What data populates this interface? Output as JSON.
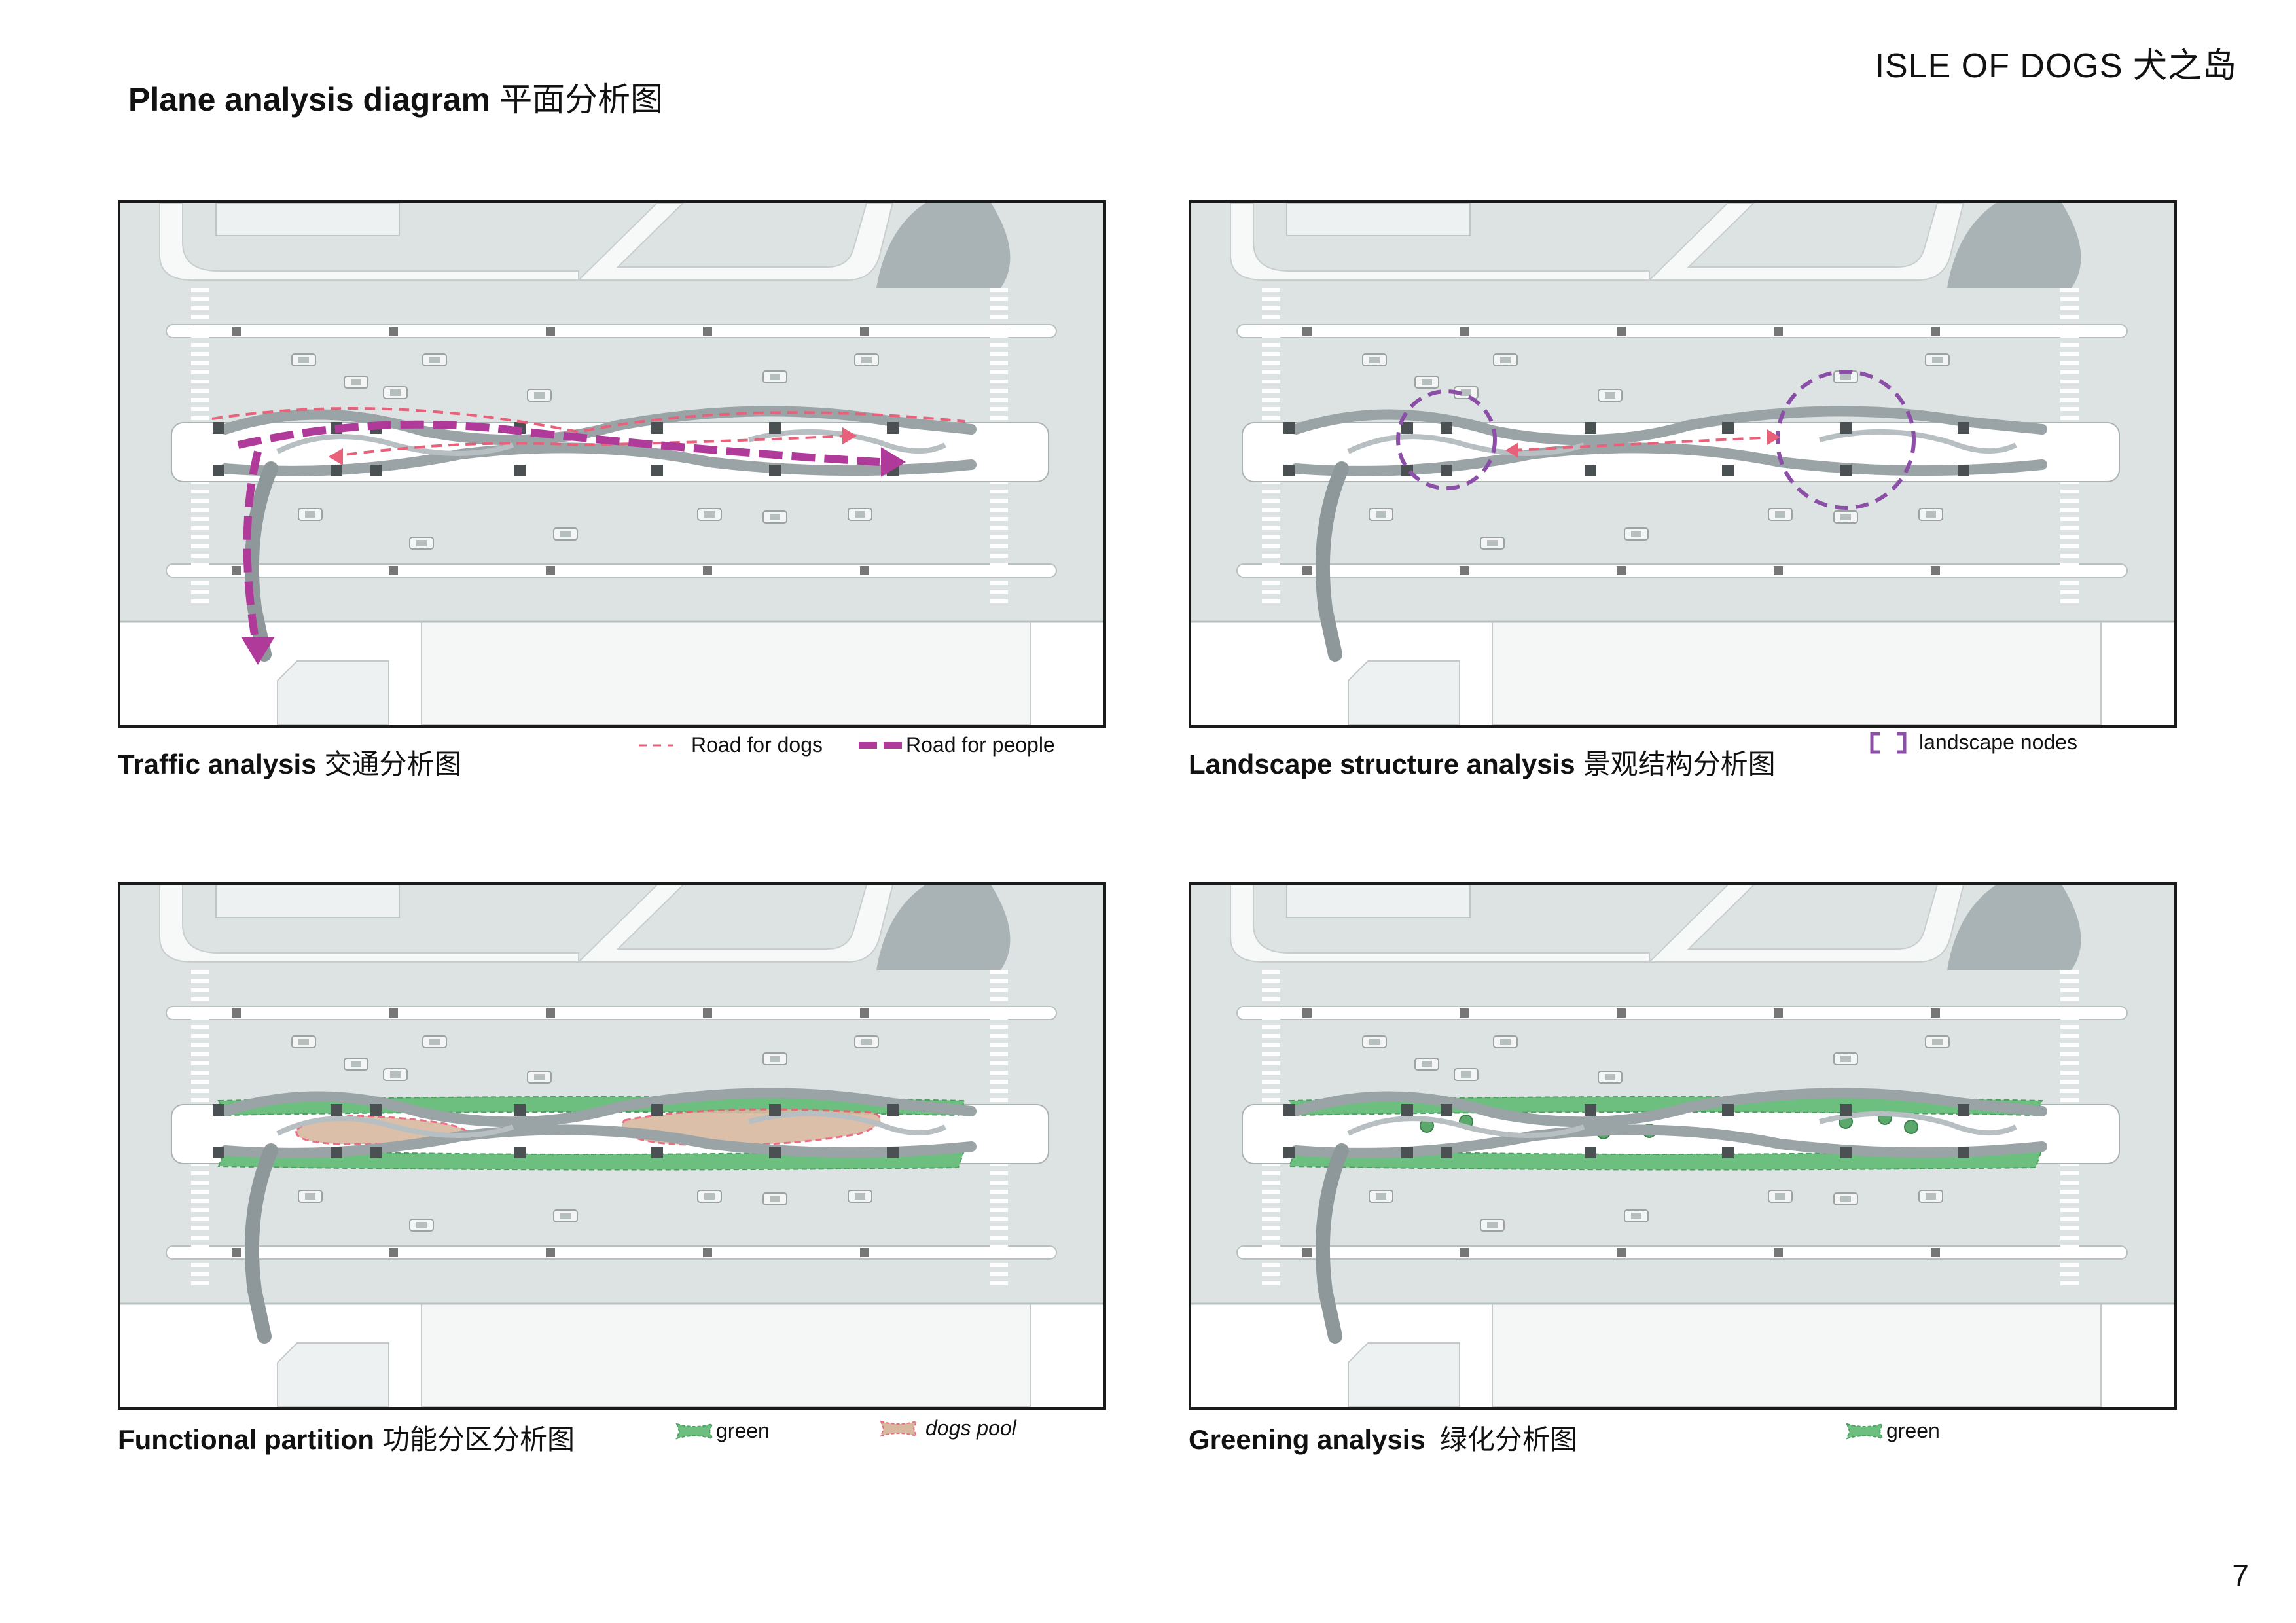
{
  "header": {
    "project_title": "ISLE OF DOGS 犬之岛",
    "heading_en": "Plane analysis diagram",
    "heading_zh": "平面分析图"
  },
  "panels": [
    {
      "id": "traffic",
      "caption_en": "Traffic analysis",
      "caption_zh": "交通分析图",
      "legend": [
        {
          "label": "Road for dogs",
          "swatch": "dashed-thin",
          "color": "#e8607a"
        },
        {
          "label": "Road for people",
          "swatch": "dashed-thick",
          "color": "#b03a9a"
        }
      ]
    },
    {
      "id": "landscape",
      "caption_en": "Landscape structure analysis",
      "caption_zh": "景观结构分析图",
      "legend": [
        {
          "label": "landscape nodes",
          "swatch": "bracket",
          "color": "#8c4fa8"
        }
      ]
    },
    {
      "id": "functional",
      "caption_en": "Functional partition",
      "caption_zh": "功能分区分析图",
      "legend": [
        {
          "label": "green",
          "swatch": "fill",
          "color": "#6cbf7f"
        },
        {
          "label": "dogs pool",
          "swatch": "fill",
          "color": "#d8b9a0"
        }
      ]
    },
    {
      "id": "greening",
      "caption_en": "Greening analysis",
      "caption_zh": "绿化分析图",
      "legend": [
        {
          "label": "green",
          "swatch": "fill",
          "color": "#6cbf7f"
        }
      ]
    }
  ],
  "page_number": "7",
  "colors": {
    "ground": "#dde3e3",
    "road_white": "#ffffff",
    "bridge": "#9aa3a6",
    "green": "#6cbf7f",
    "dogs_pool": "#d8b9a0",
    "road_people": "#b03a9a",
    "road_dogs": "#e8607a",
    "nodes": "#8c4fa8"
  }
}
